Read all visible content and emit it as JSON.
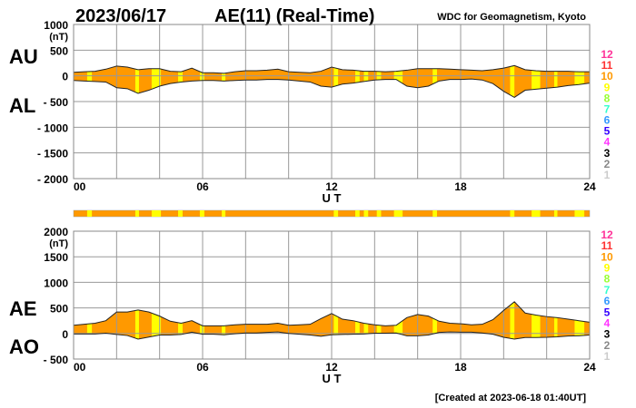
{
  "header": {
    "date": "2023/06/17",
    "title": "AE(11) (Real-Time)",
    "source": "WDC for Geomagnetism, Kyoto"
  },
  "footer": "[Created at 2023-06-18 01:40UT]",
  "legend": {
    "labels": [
      "12",
      "11",
      "10",
      "9",
      "8",
      "7",
      "6",
      "5",
      "4",
      "3",
      "2",
      "1"
    ],
    "colors": [
      "#ff3399",
      "#ff3333",
      "#ff9900",
      "#ffff00",
      "#99ff33",
      "#33ffcc",
      "#3399ff",
      "#3300ff",
      "#ff33ff",
      "#000000",
      "#888888",
      "#cccccc"
    ]
  },
  "chart_data": [
    {
      "type": "area",
      "name": "AU/AL",
      "series_labels": [
        "AU",
        "AL"
      ],
      "ylabel_unit": "(nT)",
      "xlabel": "U T",
      "x_ticks": [
        "00",
        "06",
        "12",
        "18",
        "24"
      ],
      "y_ticks": [
        "1000",
        "500",
        "0",
        "- 500",
        "- 1000",
        "- 1500",
        "- 2000"
      ],
      "ylim": [
        -2000,
        1000
      ],
      "xlim": [
        0,
        24
      ],
      "grid": true,
      "x": [
        0,
        0.5,
        1,
        1.5,
        2,
        2.5,
        3,
        3.5,
        4,
        4.5,
        5,
        5.5,
        6,
        6.5,
        7,
        7.5,
        8,
        8.5,
        9,
        9.5,
        10,
        10.5,
        11,
        11.5,
        12,
        12.5,
        13,
        13.5,
        14,
        14.5,
        15,
        15.5,
        16,
        16.5,
        17,
        17.5,
        18,
        18.5,
        19,
        19.5,
        20,
        20.5,
        21,
        21.5,
        22,
        22.5,
        23,
        23.5,
        24
      ],
      "AU": [
        70,
        80,
        90,
        130,
        190,
        170,
        120,
        140,
        140,
        90,
        80,
        150,
        60,
        60,
        50,
        80,
        100,
        100,
        110,
        130,
        80,
        70,
        60,
        90,
        170,
        120,
        110,
        90,
        90,
        80,
        90,
        110,
        140,
        140,
        140,
        130,
        120,
        110,
        100,
        120,
        150,
        200,
        120,
        100,
        90,
        90,
        90,
        80,
        80
      ],
      "AL": [
        -90,
        -100,
        -110,
        -120,
        -230,
        -250,
        -340,
        -280,
        -200,
        -150,
        -120,
        -100,
        -90,
        -90,
        -100,
        -90,
        -80,
        -80,
        -70,
        -70,
        -80,
        -100,
        -120,
        -200,
        -220,
        -160,
        -140,
        -110,
        -80,
        -70,
        -70,
        -200,
        -230,
        -200,
        -100,
        -70,
        -70,
        -60,
        -80,
        -150,
        -300,
        -420,
        -280,
        -260,
        -240,
        -220,
        -190,
        -170,
        -140
      ]
    },
    {
      "type": "area",
      "name": "AE/AO",
      "series_labels": [
        "AE",
        "AO"
      ],
      "ylabel_unit": "(nT)",
      "xlabel": "U T",
      "x_ticks": [
        "00",
        "06",
        "12",
        "18",
        "24"
      ],
      "y_ticks": [
        "2000",
        "1500",
        "1000",
        "500",
        "0",
        "- 500"
      ],
      "ylim": [
        -500,
        2000
      ],
      "xlim": [
        0,
        24
      ],
      "grid": true,
      "derived": "AE = AU - AL, AO = (AU + AL) / 2"
    }
  ],
  "station_count_segments": {
    "default_count": 10,
    "reduced_count": 9,
    "reduced_intervals_hours": [
      [
        0.63,
        0.85
      ],
      [
        2.87,
        3.04
      ],
      [
        3.63,
        4.06
      ],
      [
        4.86,
        5.07
      ],
      [
        5.87,
        6.08
      ],
      [
        6.89,
        7.06
      ],
      [
        12.1,
        12.3
      ],
      [
        13.1,
        13.3
      ],
      [
        13.5,
        13.7
      ],
      [
        14.1,
        14.3
      ],
      [
        14.9,
        15.3
      ],
      [
        16.7,
        16.9
      ],
      [
        20.3,
        20.5
      ],
      [
        21.3,
        21.7
      ],
      [
        22.35,
        22.5
      ],
      [
        23.3,
        23.75
      ]
    ]
  }
}
